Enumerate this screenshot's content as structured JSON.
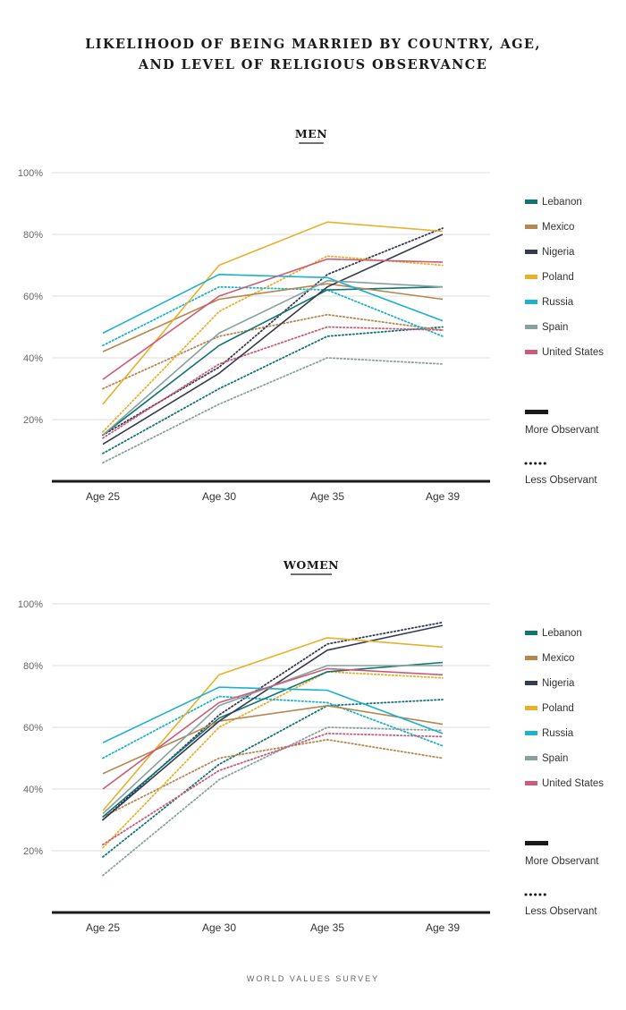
{
  "title_lines": [
    "LIKELIHOOD OF BEING MARRIED BY COUNTRY, AGE,",
    "AND LEVEL OF RELIGIOUS OBSERVANCE"
  ],
  "source": "WORLD VALUES SURVEY",
  "countries": [
    {
      "name": "Lebanon",
      "color": "#127474"
    },
    {
      "name": "Mexico",
      "color": "#b8864f"
    },
    {
      "name": "Nigeria",
      "color": "#363a52"
    },
    {
      "name": "Poland",
      "color": "#e6b12c"
    },
    {
      "name": "Russia",
      "color": "#1bb2cc"
    },
    {
      "name": "Spain",
      "color": "#86a19e"
    },
    {
      "name": "United States",
      "color": "#cc5b79"
    }
  ],
  "legend_styles": {
    "more": "More Observant",
    "less": "Less Observant"
  },
  "chart_data": [
    {
      "type": "line",
      "title": "MEN",
      "categories": [
        "Age 25",
        "Age 30",
        "Age 35",
        "Age 39"
      ],
      "ylim": [
        0,
        100
      ],
      "yticks": [
        "20%",
        "40%",
        "60%",
        "80%",
        "100%"
      ],
      "yticks_values": [
        20,
        40,
        60,
        80,
        100
      ],
      "grid": true,
      "legend_position": "right",
      "series": [
        {
          "name": "Lebanon",
          "style": "More Observant",
          "values": [
            15,
            44,
            62,
            63
          ]
        },
        {
          "name": "Mexico",
          "style": "More Observant",
          "values": [
            42,
            59,
            64,
            59
          ]
        },
        {
          "name": "Nigeria",
          "style": "More Observant",
          "values": [
            12,
            35,
            63,
            80
          ]
        },
        {
          "name": "Poland",
          "style": "More Observant",
          "values": [
            25,
            70,
            84,
            81
          ]
        },
        {
          "name": "Russia",
          "style": "More Observant",
          "values": [
            48,
            67,
            66,
            52
          ]
        },
        {
          "name": "Spain",
          "style": "More Observant",
          "values": [
            15,
            48,
            65,
            63
          ]
        },
        {
          "name": "United States",
          "style": "More Observant",
          "values": [
            33,
            60,
            72,
            71
          ]
        },
        {
          "name": "Lebanon",
          "style": "Less Observant",
          "values": [
            9,
            30,
            47,
            50
          ]
        },
        {
          "name": "Mexico",
          "style": "Less Observant",
          "values": [
            30,
            47,
            54,
            49
          ]
        },
        {
          "name": "Nigeria",
          "style": "Less Observant",
          "values": [
            15,
            37,
            67,
            82
          ]
        },
        {
          "name": "Poland",
          "style": "Less Observant",
          "values": [
            16,
            55,
            73,
            70
          ]
        },
        {
          "name": "Russia",
          "style": "Less Observant",
          "values": [
            44,
            63,
            62,
            47
          ]
        },
        {
          "name": "Spain",
          "style": "Less Observant",
          "values": [
            6,
            25,
            40,
            38
          ]
        },
        {
          "name": "United States",
          "style": "Less Observant",
          "values": [
            14,
            38,
            50,
            49
          ]
        }
      ]
    },
    {
      "type": "line",
      "title": "WOMEN",
      "categories": [
        "Age 25",
        "Age 30",
        "Age 35",
        "Age 39"
      ],
      "ylim": [
        0,
        100
      ],
      "yticks": [
        "20%",
        "40%",
        "60%",
        "80%",
        "100%"
      ],
      "yticks_values": [
        20,
        40,
        60,
        80,
        100
      ],
      "grid": true,
      "legend_position": "right",
      "series": [
        {
          "name": "Lebanon",
          "style": "More Observant",
          "values": [
            31,
            63,
            78,
            81
          ]
        },
        {
          "name": "Mexico",
          "style": "More Observant",
          "values": [
            45,
            62,
            67,
            61
          ]
        },
        {
          "name": "Nigeria",
          "style": "More Observant",
          "values": [
            30,
            62,
            85,
            93
          ]
        },
        {
          "name": "Poland",
          "style": "More Observant",
          "values": [
            33,
            77,
            89,
            86
          ]
        },
        {
          "name": "Russia",
          "style": "More Observant",
          "values": [
            55,
            73,
            72,
            58
          ]
        },
        {
          "name": "Spain",
          "style": "More Observant",
          "values": [
            32,
            67,
            80,
            80
          ]
        },
        {
          "name": "United States",
          "style": "More Observant",
          "values": [
            40,
            68,
            79,
            77
          ]
        },
        {
          "name": "Lebanon",
          "style": "Less Observant",
          "values": [
            18,
            48,
            67,
            69
          ]
        },
        {
          "name": "Mexico",
          "style": "Less Observant",
          "values": [
            31,
            50,
            56,
            50
          ]
        },
        {
          "name": "Nigeria",
          "style": "Less Observant",
          "values": [
            30,
            64,
            87,
            94
          ]
        },
        {
          "name": "Poland",
          "style": "Less Observant",
          "values": [
            21,
            60,
            78,
            76
          ]
        },
        {
          "name": "Russia",
          "style": "Less Observant",
          "values": [
            50,
            70,
            68,
            54
          ]
        },
        {
          "name": "Spain",
          "style": "Less Observant",
          "values": [
            12,
            43,
            60,
            59
          ]
        },
        {
          "name": "United States",
          "style": "Less Observant",
          "values": [
            22,
            46,
            58,
            57
          ]
        }
      ]
    }
  ]
}
